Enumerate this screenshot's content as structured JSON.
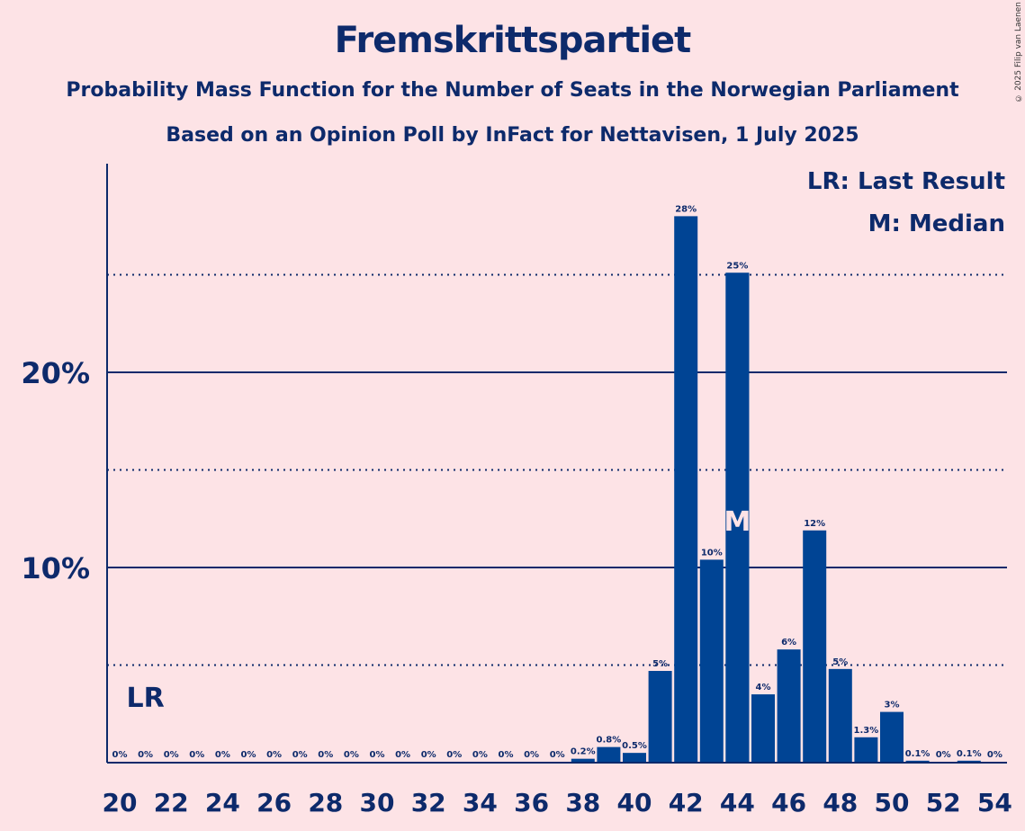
{
  "title": "Fremskrittspartiet",
  "subtitle1": "Probability Mass Function for the Number of Seats in the Norwegian Parliament",
  "subtitle2": "Based on an Opinion Poll by InFact for Nettavisen, 1 July 2025",
  "copyright": "© 2025 Filip van Laenen",
  "legend": {
    "lr": "LR: Last Result",
    "m": "M: Median"
  },
  "markers": {
    "last_result_label": "LR",
    "last_result_seat": 21,
    "median_label": "M",
    "median_seat": 44
  },
  "colors": {
    "bar": "#004494",
    "background": "#fde3e6",
    "text": "#0d2a6b"
  },
  "chart_data": {
    "type": "bar",
    "x": [
      20,
      21,
      22,
      23,
      24,
      25,
      26,
      27,
      28,
      29,
      30,
      31,
      32,
      33,
      34,
      35,
      36,
      37,
      38,
      39,
      40,
      41,
      42,
      43,
      44,
      45,
      46,
      47,
      48,
      49,
      50,
      51,
      52,
      53,
      54
    ],
    "values": [
      0,
      0,
      0,
      0,
      0,
      0,
      0,
      0,
      0,
      0,
      0,
      0,
      0,
      0,
      0,
      0,
      0,
      0,
      0.2,
      0.8,
      0.5,
      4.7,
      28,
      10.4,
      25.1,
      3.5,
      5.8,
      11.9,
      4.8,
      1.3,
      2.6,
      0.1,
      0,
      0.1,
      0
    ],
    "labels": [
      "0%",
      "0%",
      "0%",
      "0%",
      "0%",
      "0%",
      "0%",
      "0%",
      "0%",
      "0%",
      "0%",
      "0%",
      "0%",
      "0%",
      "0%",
      "0%",
      "0%",
      "0%",
      "0.2%",
      "0.8%",
      "0.5%",
      "5%",
      "28%",
      "10%",
      "25%",
      "4%",
      "6%",
      "12%",
      "5%",
      "1.3%",
      "3%",
      "0.1%",
      "0%",
      "0.1%",
      "0%"
    ],
    "x_tick_labels": [
      "20",
      "22",
      "24",
      "26",
      "28",
      "30",
      "32",
      "34",
      "36",
      "38",
      "40",
      "42",
      "44",
      "46",
      "48",
      "50",
      "52",
      "54"
    ],
    "y_tick_labels": [
      "10%",
      "20%"
    ],
    "y_solid_gridlines": [
      10,
      20
    ],
    "y_dotted_gridlines": [
      5,
      15,
      25
    ],
    "ylim": [
      0,
      30.6
    ]
  }
}
